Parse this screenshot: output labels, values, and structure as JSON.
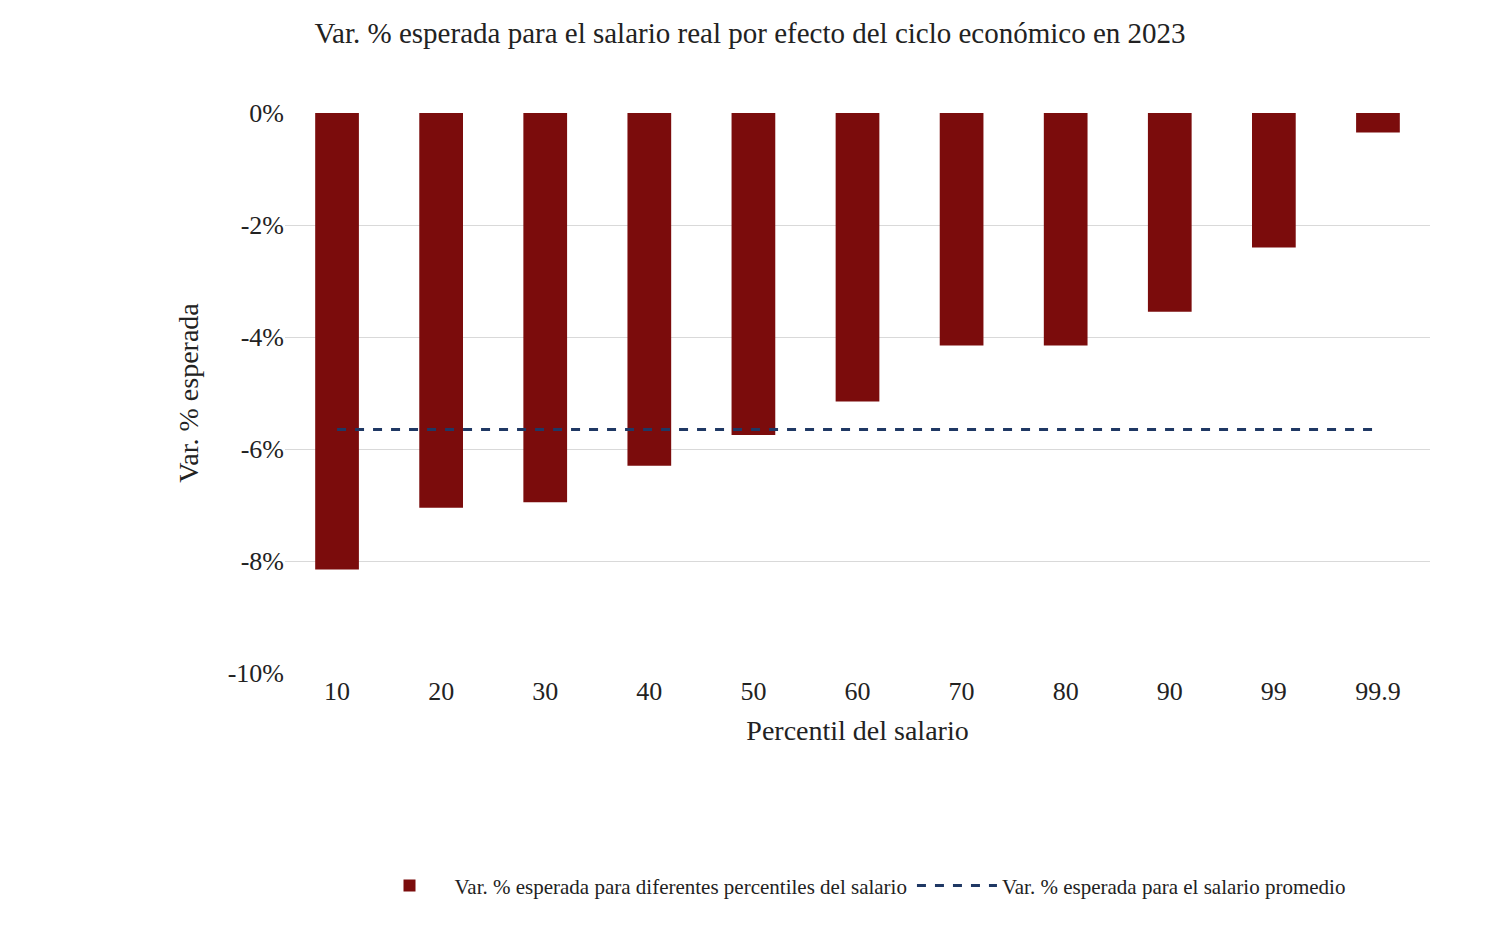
{
  "chart_data": {
    "type": "bar",
    "title": "Var. % esperada para el salario real por efecto del ciclo económico en 2023",
    "x_label": "Percentil del salario",
    "y_label": "Var. % esperada",
    "categories": [
      "10",
      "20",
      "30",
      "40",
      "50",
      "60",
      "70",
      "80",
      "90",
      "99",
      "99.9"
    ],
    "series": [
      {
        "name": "Var. % esperada para diferentes percentiles del salario",
        "type": "bar",
        "color": "#7b0c0c",
        "values": [
          -8.15,
          -7.05,
          -6.95,
          -6.3,
          -5.75,
          -5.15,
          -4.15,
          -4.15,
          -3.55,
          -2.4,
          -0.35
        ]
      },
      {
        "name": "Var. % esperada para el salario promedio",
        "type": "line",
        "line_style": "dashed",
        "color": "#1f3864",
        "values": [
          -5.65,
          -5.65,
          -5.65,
          -5.65,
          -5.65,
          -5.65,
          -5.65,
          -5.65,
          -5.65,
          -5.65,
          -5.65
        ]
      }
    ],
    "ylim": [
      -10,
      0
    ],
    "yticks": [
      {
        "value": 0,
        "label": "0%"
      },
      {
        "value": -2,
        "label": "-2%"
      },
      {
        "value": -4,
        "label": "-4%"
      },
      {
        "value": -6,
        "label": "-6%"
      },
      {
        "value": -8,
        "label": "-8%"
      },
      {
        "value": -10,
        "label": "-10%"
      }
    ],
    "grid": true,
    "legend": "bottom"
  }
}
